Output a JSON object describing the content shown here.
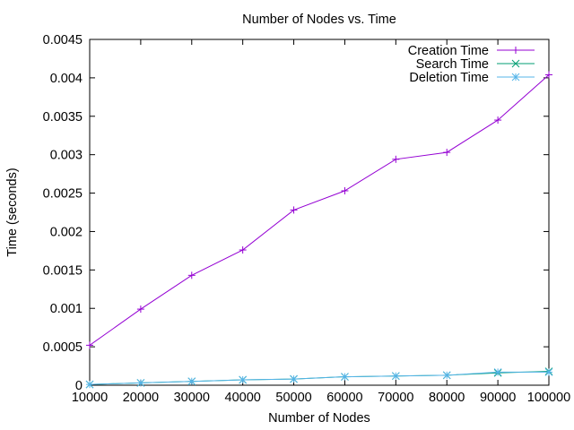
{
  "chart_data": {
    "type": "line",
    "title": "Number of Nodes vs. Time",
    "xlabel": "Number of Nodes",
    "ylabel": "Time (seconds)",
    "xlim": [
      10000,
      100000
    ],
    "ylim": [
      0,
      0.0045
    ],
    "x_ticks": [
      "10000",
      "20000",
      "30000",
      "40000",
      "50000",
      "60000",
      "70000",
      "80000",
      "90000",
      "100000"
    ],
    "y_ticks": [
      "0",
      "0.0005",
      "0.001",
      "0.0015",
      "0.002",
      "0.0025",
      "0.003",
      "0.0035",
      "0.004",
      "0.0045"
    ],
    "grid": false,
    "legend_position": "top-right",
    "x": [
      10000,
      20000,
      30000,
      40000,
      50000,
      60000,
      70000,
      80000,
      90000,
      100000
    ],
    "series": [
      {
        "name": "Creation Time",
        "marker": "plus",
        "color": "#9400d3",
        "values": [
          0.00052,
          0.00099,
          0.00143,
          0.00176,
          0.00228,
          0.00253,
          0.00294,
          0.00303,
          0.00345,
          0.00404
        ]
      },
      {
        "name": "Search Time",
        "marker": "cross",
        "color": "#009e73",
        "values": [
          1e-05,
          3e-05,
          5e-05,
          7e-05,
          8e-05,
          0.00011,
          0.00012,
          0.00013,
          0.00016,
          0.00018
        ]
      },
      {
        "name": "Deletion Time",
        "marker": "asterisk",
        "color": "#56b4e9",
        "values": [
          1e-05,
          3e-05,
          5e-05,
          7e-05,
          8e-05,
          0.00011,
          0.00012,
          0.00013,
          0.00017,
          0.00017
        ]
      }
    ]
  }
}
